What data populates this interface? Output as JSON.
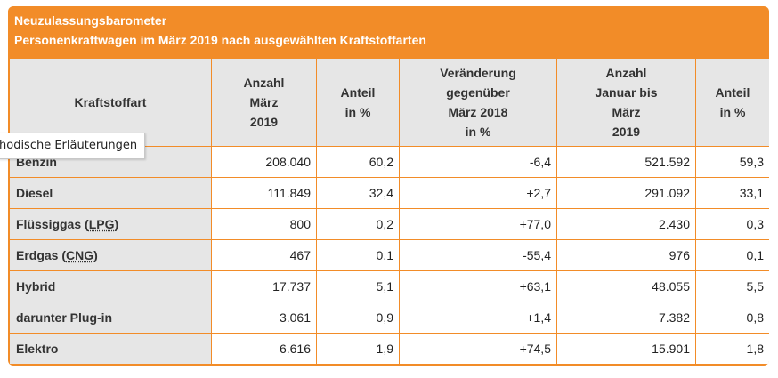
{
  "title_line1": "Neuzulassungsbarometer",
  "title_line2": "Personenkraftwagen im März 2019 nach ausgewählten Kraftstoffarten",
  "headers": {
    "fuel": "Kraftstoffart",
    "count_march": [
      "Anzahl",
      "März",
      "2019"
    ],
    "share_march": [
      "Anteil",
      "in %"
    ],
    "change": [
      "Veränderung",
      "gegenüber",
      "März 2018",
      "in %"
    ],
    "count_ytd": [
      "Anzahl",
      "Januar bis",
      "März",
      "2019"
    ],
    "share_ytd": [
      "Anteil",
      "in %"
    ]
  },
  "rows": [
    {
      "fuel": "Benzin",
      "count": "208.040",
      "share": "60,2",
      "change": "-6,4",
      "count_ytd": "521.592",
      "share_ytd": "59,3"
    },
    {
      "fuel": "Diesel",
      "count": "111.849",
      "share": "32,4",
      "change": "+2,7",
      "count_ytd": "291.092",
      "share_ytd": "33,1"
    },
    {
      "fuel_prefix": "Flüssiggas (",
      "fuel_abbr": "LPG",
      "fuel_suffix": ")",
      "count": "800",
      "share": "0,2",
      "change": "+77,0",
      "count_ytd": "2.430",
      "share_ytd": "0,3"
    },
    {
      "fuel_prefix": "Erdgas (",
      "fuel_abbr": "CNG",
      "fuel_suffix": ")",
      "count": "467",
      "share": "0,1",
      "change": "-55,4",
      "count_ytd": "976",
      "share_ytd": "0,1"
    },
    {
      "fuel": "Hybrid",
      "count": "17.737",
      "share": "5,1",
      "change": "+63,1",
      "count_ytd": "48.055",
      "share_ytd": "5,5"
    },
    {
      "fuel": "darunter Plug-in",
      "count": "3.061",
      "share": "0,9",
      "change": "+1,4",
      "count_ytd": "7.382",
      "share_ytd": "0,8"
    },
    {
      "fuel": "Elektro",
      "count": "6.616",
      "share": "1,9",
      "change": "+74,5",
      "count_ytd": "15.901",
      "share_ytd": "1,8"
    }
  ],
  "tooltip": "hodische Erläuterungen",
  "colors": {
    "accent": "#f28c28",
    "header_bg": "#e6e6e6"
  }
}
